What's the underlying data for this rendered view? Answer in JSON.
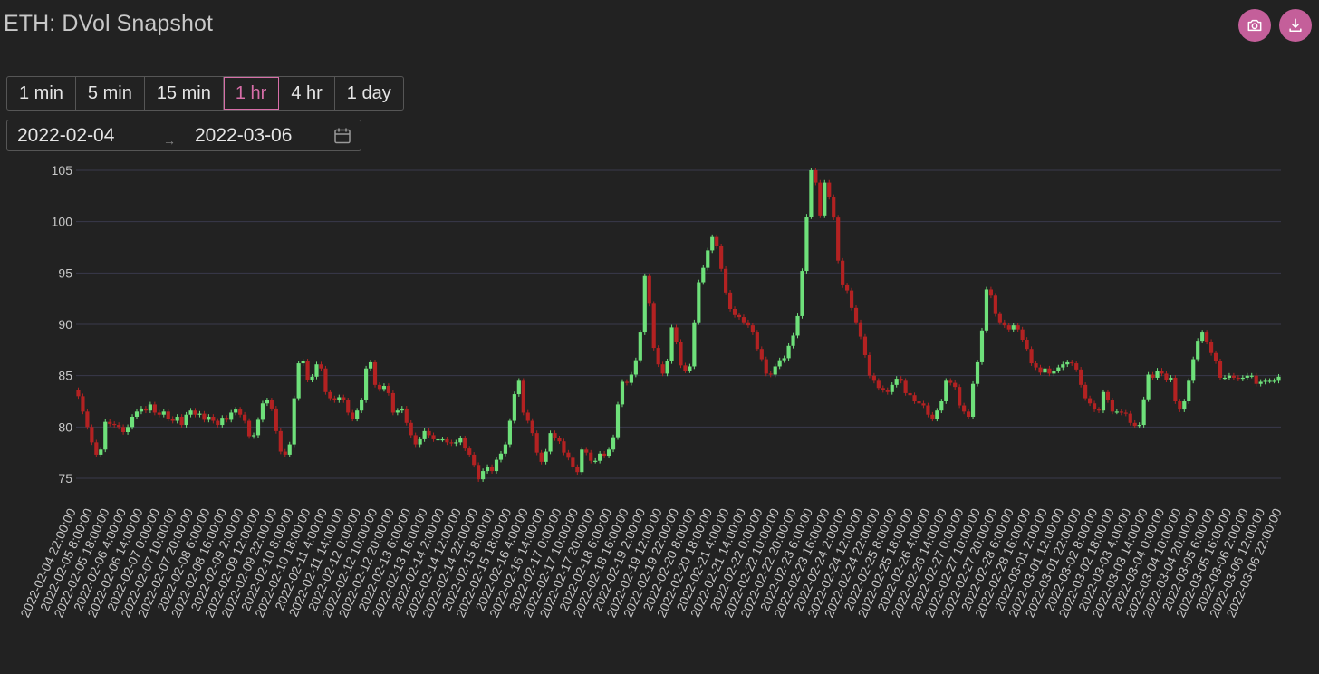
{
  "header": {
    "title": "ETH: DVol Snapshot"
  },
  "actions": [
    {
      "name": "screenshot",
      "icon": "camera-icon"
    },
    {
      "name": "download",
      "icon": "download-icon"
    }
  ],
  "intervals": {
    "options": [
      "1 min",
      "5 min",
      "15 min",
      "1 hr",
      "4 hr",
      "1 day"
    ],
    "selected": "1 hr"
  },
  "date_range": {
    "start": "2022-02-04",
    "separator": "→",
    "end": "2022-03-06",
    "icon": "calendar-icon"
  },
  "colors": {
    "up": "#6ee07a",
    "down": "#b32222",
    "accent": "#c45f9a",
    "grid": "#3a3a4c"
  },
  "chart_data": {
    "type": "candlestick",
    "title": "",
    "ylim": [
      74,
      105.5
    ],
    "yticks": [
      75,
      80,
      85,
      90,
      95,
      100,
      105
    ],
    "grid": true,
    "xlabels": [
      "2022-02-04 22:00:00",
      "2022-02-05 8:00:00",
      "2022-02-05 18:00:00",
      "2022-02-06 4:00:00",
      "2022-02-06 14:00:00",
      "2022-02-07 0:00:00",
      "2022-02-07 10:00:00",
      "2022-02-07 20:00:00",
      "2022-02-08 6:00:00",
      "2022-02-08 16:00:00",
      "2022-02-09 2:00:00",
      "2022-02-09 12:00:00",
      "2022-02-09 22:00:00",
      "2022-02-10 8:00:00",
      "2022-02-10 18:00:00",
      "2022-02-11 4:00:00",
      "2022-02-11 14:00:00",
      "2022-02-12 0:00:00",
      "2022-02-12 10:00:00",
      "2022-02-12 20:00:00",
      "2022-02-13 6:00:00",
      "2022-02-13 16:00:00",
      "2022-02-14 2:00:00",
      "2022-02-14 12:00:00",
      "2022-02-14 22:00:00",
      "2022-02-15 8:00:00",
      "2022-02-15 18:00:00",
      "2022-02-16 4:00:00",
      "2022-02-16 14:00:00",
      "2022-02-17 0:00:00",
      "2022-02-17 10:00:00",
      "2022-02-17 20:00:00",
      "2022-02-18 6:00:00",
      "2022-02-18 16:00:00",
      "2022-02-19 2:00:00",
      "2022-02-19 12:00:00",
      "2022-02-19 22:00:00",
      "2022-02-20 8:00:00",
      "2022-02-20 18:00:00",
      "2022-02-21 4:00:00",
      "2022-02-21 14:00:00",
      "2022-02-22 0:00:00",
      "2022-02-22 10:00:00",
      "2022-02-22 20:00:00",
      "2022-02-23 6:00:00",
      "2022-02-23 16:00:00",
      "2022-02-24 2:00:00",
      "2022-02-24 12:00:00",
      "2022-02-24 22:00:00",
      "2022-02-25 8:00:00",
      "2022-02-25 18:00:00",
      "2022-02-26 4:00:00",
      "2022-02-26 14:00:00",
      "2022-02-27 0:00:00",
      "2022-02-27 10:00:00",
      "2022-02-27 20:00:00",
      "2022-02-28 6:00:00",
      "2022-02-28 16:00:00",
      "2022-03-01 2:00:00",
      "2022-03-01 12:00:00",
      "2022-03-01 22:00:00",
      "2022-03-02 8:00:00",
      "2022-03-02 18:00:00",
      "2022-03-03 4:00:00",
      "2022-03-03 14:00:00",
      "2022-03-04 0:00:00",
      "2022-03-04 10:00:00",
      "2022-03-04 20:00:00",
      "2022-03-05 6:00:00",
      "2022-03-05 16:00:00",
      "2022-03-06 2:00:00",
      "2022-03-06 12:00:00",
      "2022-03-06 22:00:00"
    ],
    "close": [
      83,
      81.5,
      80,
      78.5,
      77.3,
      77.8,
      80.5,
      80.3,
      80.2,
      80,
      79.5,
      80,
      81,
      81.5,
      81.8,
      81.6,
      82.2,
      81.4,
      81.2,
      81.5,
      80.8,
      80.6,
      81,
      80.2,
      81.2,
      81.6,
      81.2,
      81.3,
      80.7,
      81,
      80.6,
      80.2,
      80.9,
      80.7,
      81.4,
      81.7,
      81.2,
      80.6,
      79.1,
      79.2,
      80.7,
      82.3,
      82.6,
      81.8,
      79.6,
      77.6,
      77.3,
      78.3,
      82.8,
      86.2,
      86.4,
      84.6,
      84.9,
      86.1,
      85.7,
      83.4,
      82.8,
      82.6,
      82.9,
      82.6,
      81.4,
      80.8,
      81.6,
      82.6,
      85.7,
      86.3,
      84.1,
      83.7,
      84,
      83.3,
      81.4,
      81.6,
      81.8,
      80.4,
      79.2,
      78.3,
      78.8,
      79.6,
      79.2,
      78.8,
      78.8,
      78.8,
      78.5,
      78.4,
      78.5,
      78.9,
      77.9,
      77.3,
      76.3,
      74.9,
      75.7,
      76.1,
      75.7,
      76.8,
      77.4,
      78.3,
      80.6,
      83.2,
      84.5,
      81.4,
      80.6,
      79.4,
      77.5,
      76.6,
      77.6,
      79.4,
      78.9,
      78.6,
      77.5,
      77,
      76.1,
      75.6,
      77.8,
      77.5,
      76.7,
      76.7,
      77.4,
      77.2,
      77.8,
      79,
      82.2,
      84.4,
      84.3,
      85.1,
      86.5,
      89.2,
      94.7,
      92,
      87.7,
      86.1,
      85.2,
      86.4,
      89.7,
      88.3,
      86,
      85.5,
      85.9,
      90.2,
      94.1,
      95.5,
      97.2,
      98.5,
      97.6,
      95.4,
      93.1,
      91.5,
      90.9,
      90.7,
      90.2,
      89.9,
      89.2,
      87.6,
      86.6,
      85.2,
      85.1,
      85.9,
      86.5,
      86.7,
      87.9,
      88.9,
      90.8,
      95.2,
      100.5,
      105,
      103.8,
      100.6,
      103.8,
      102.4,
      100.4,
      96.2,
      93.8,
      93.3,
      91.6,
      90.2,
      88.8,
      87,
      85,
      84.5,
      83.8,
      83.6,
      83.4,
      84.1,
      84.7,
      84.5,
      83.3,
      83.1,
      82.5,
      82.3,
      82.1,
      81.2,
      80.8,
      81.6,
      82.5,
      84.5,
      84.3,
      83.9,
      82.1,
      81.5,
      81,
      84.2,
      86.3,
      89.4,
      93.4,
      92.8,
      91,
      90.2,
      89.9,
      89.5,
      89.9,
      89.5,
      88.5,
      87.6,
      86.2,
      85.8,
      85.3,
      85.7,
      85.2,
      85.5,
      85.8,
      86.1,
      86.3,
      86.2,
      85.6,
      84.1,
      82.8,
      82.3,
      81.7,
      81.6,
      83.4,
      82.6,
      81.5,
      81.5,
      81.4,
      81.3,
      80.4,
      80.1,
      80.2,
      82.7,
      85.1,
      84.8,
      85.5,
      85.2,
      84.6,
      84.8,
      82.5,
      81.7,
      82.5,
      84.5,
      86.6,
      88.4,
      89.2,
      88.3,
      87.2,
      86.4,
      84.8,
      84.8,
      85,
      84.8,
      84.7,
      84.8,
      85,
      85,
      84.2,
      84.4,
      84.5,
      84.5,
      84.5,
      84.9
    ]
  }
}
